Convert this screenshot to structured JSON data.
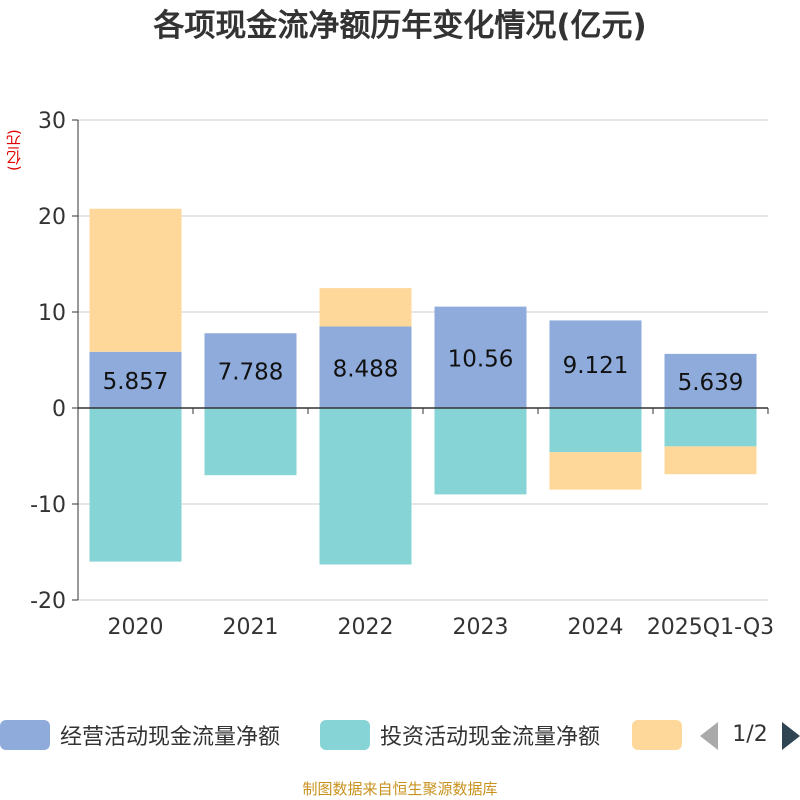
{
  "chart_data": {
    "type": "bar",
    "stacked": true,
    "title": "各项现金流净额历年变化情况(亿元)",
    "ylabel": "(亿元)",
    "ylim": [
      -20,
      30
    ],
    "yticks": [
      30,
      20,
      10,
      0,
      -10,
      -20
    ],
    "grid": true,
    "categories": [
      "2020",
      "2021",
      "2022",
      "2023",
      "2024",
      "2025Q1-Q3"
    ],
    "series": [
      {
        "name": "经营活动现金流量净额",
        "color": "#8eabdb",
        "values": [
          5.857,
          7.788,
          8.488,
          10.56,
          9.121,
          5.639
        ],
        "labels": [
          "5.857",
          "7.788",
          "8.488",
          "10.56",
          "9.121",
          "5.639"
        ]
      },
      {
        "name": "投资活动现金流量净额",
        "color": "#86d4d6",
        "values": [
          -16.0,
          -7.0,
          -16.3,
          -9.0,
          -4.6,
          -4.0
        ]
      },
      {
        "name": "",
        "color": "#fdd89a",
        "values": [
          14.9,
          0,
          4.0,
          0,
          -3.9,
          -2.9
        ]
      }
    ]
  },
  "legend": {
    "items": [
      "经营活动现金流量净额",
      "投资活动现金流量净额",
      ""
    ],
    "page": "1/2"
  },
  "source_note": "制图数据来自恒生聚源数据库"
}
